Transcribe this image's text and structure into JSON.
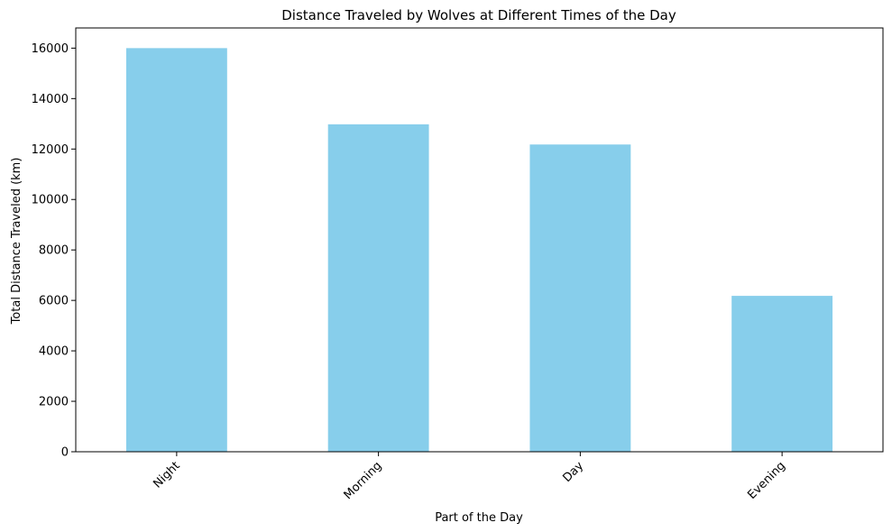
{
  "chart_data": {
    "type": "bar",
    "title": "Distance Traveled by Wolves at Different Times of the Day",
    "xlabel": "Part of the Day",
    "ylabel": "Total Distance Traveled (km)",
    "categories": [
      "Night",
      "Morning",
      "Day",
      "Evening"
    ],
    "values": [
      16000,
      12980,
      12180,
      6180
    ],
    "ylim": [
      0,
      16800
    ],
    "yticks": [
      0,
      2000,
      4000,
      6000,
      8000,
      10000,
      12000,
      14000,
      16000
    ],
    "bar_color": "#87ceeb",
    "grid": false,
    "legend": "none"
  }
}
